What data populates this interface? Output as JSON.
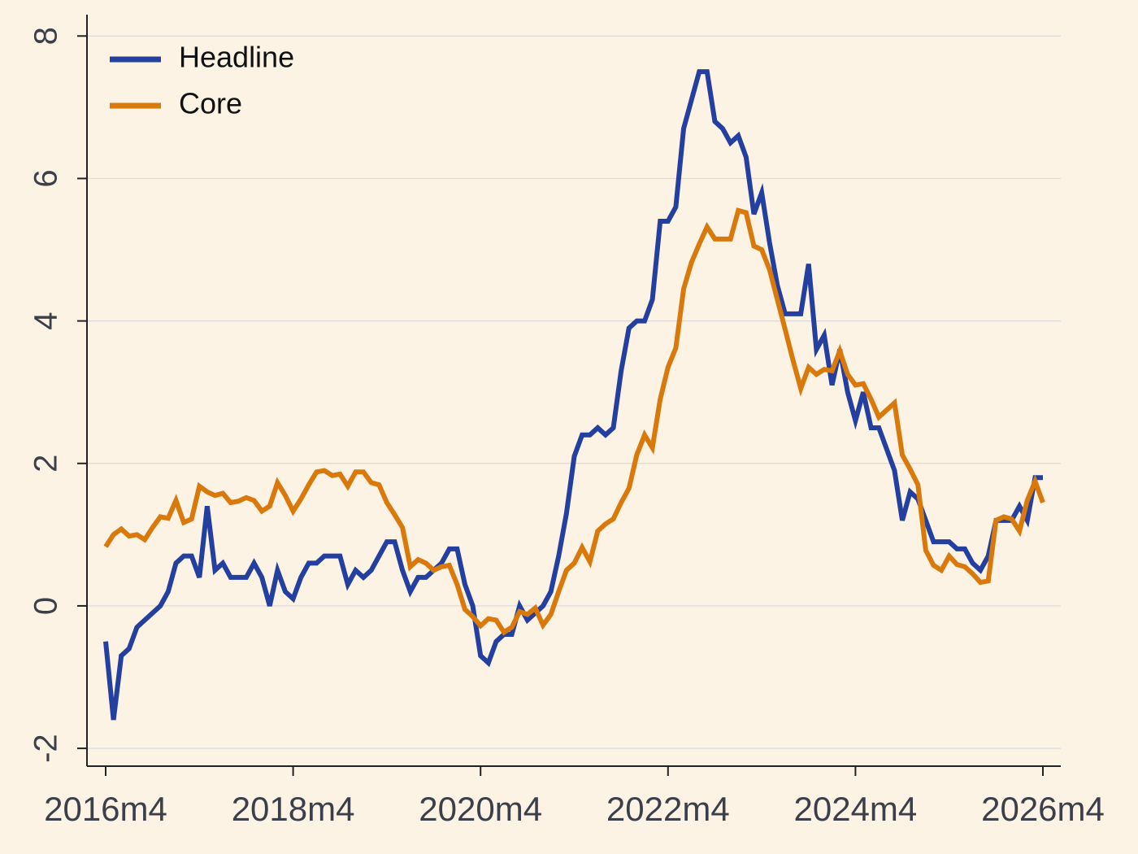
{
  "chart_data": {
    "type": "line",
    "categories": [
      "2016m4",
      null,
      null,
      null,
      null,
      null,
      null,
      null,
      null,
      null,
      null,
      null,
      null,
      null,
      null,
      null,
      null,
      null,
      null,
      null,
      null,
      null,
      null,
      null,
      "2018m4",
      null,
      null,
      null,
      null,
      null,
      null,
      null,
      null,
      null,
      null,
      null,
      null,
      null,
      null,
      null,
      null,
      null,
      null,
      null,
      null,
      null,
      null,
      null,
      "2020m4",
      null,
      null,
      null,
      null,
      null,
      null,
      null,
      null,
      null,
      null,
      null,
      null,
      null,
      null,
      null,
      null,
      null,
      null,
      null,
      null,
      null,
      null,
      null,
      "2022m4",
      null,
      null,
      null,
      null,
      null,
      null,
      null,
      null,
      null,
      null,
      null,
      null,
      null,
      null,
      null,
      null,
      null,
      null,
      null,
      null,
      null,
      null,
      null,
      "2024m4",
      null,
      null,
      null,
      null,
      null,
      null,
      null,
      null,
      null,
      null,
      null,
      null,
      null,
      null,
      null,
      null,
      null,
      null,
      null,
      null,
      null,
      null,
      null,
      "2026m4"
    ],
    "series": [
      {
        "name": "Headline",
        "color": "#2340a0",
        "values": [
          -0.5,
          -1.6,
          -0.7,
          -0.6,
          -0.3,
          -0.2,
          -0.1,
          0.0,
          0.2,
          0.6,
          0.7,
          0.7,
          0.4,
          1.4,
          0.5,
          0.6,
          0.4,
          0.4,
          0.4,
          0.6,
          0.4,
          0.0,
          0.5,
          0.2,
          0.1,
          0.4,
          0.6,
          0.6,
          0.7,
          0.7,
          0.7,
          0.3,
          0.5,
          0.4,
          0.5,
          0.7,
          0.9,
          0.9,
          0.5,
          0.2,
          0.4,
          0.4,
          0.5,
          0.6,
          0.8,
          0.8,
          0.3,
          0.0,
          -0.7,
          -0.8,
          -0.5,
          -0.4,
          -0.4,
          0.0,
          -0.2,
          -0.1,
          0.0,
          0.2,
          0.7,
          1.3,
          2.1,
          2.4,
          2.4,
          2.5,
          2.4,
          2.5,
          3.3,
          3.9,
          4.0,
          4.0,
          4.3,
          5.4,
          5.4,
          5.6,
          6.7,
          7.1,
          7.5,
          7.5,
          6.8,
          6.7,
          6.5,
          6.6,
          6.3,
          5.5,
          5.8,
          5.1,
          4.5,
          4.1,
          4.1,
          4.1,
          4.8,
          3.6,
          3.8,
          3.1,
          3.6,
          3.0,
          2.6,
          3.0,
          2.5,
          2.5,
          2.2,
          1.9,
          1.2,
          1.6,
          1.5,
          1.2,
          0.9,
          0.9,
          0.9,
          0.8,
          0.8,
          0.6,
          0.5,
          0.7,
          1.2,
          1.2,
          1.2,
          1.4,
          1.2,
          1.8,
          1.8
        ]
      },
      {
        "name": "Core",
        "color": "#d9790c",
        "values": [
          0.83,
          1.0,
          1.08,
          0.98,
          1.0,
          0.93,
          1.1,
          1.25,
          1.23,
          1.48,
          1.17,
          1.22,
          1.68,
          1.6,
          1.55,
          1.58,
          1.45,
          1.47,
          1.52,
          1.48,
          1.33,
          1.4,
          1.73,
          1.55,
          1.33,
          1.5,
          1.7,
          1.88,
          1.9,
          1.83,
          1.85,
          1.68,
          1.88,
          1.88,
          1.73,
          1.7,
          1.45,
          1.28,
          1.1,
          0.55,
          0.65,
          0.6,
          0.5,
          0.55,
          0.57,
          0.3,
          -0.05,
          -0.15,
          -0.28,
          -0.18,
          -0.2,
          -0.37,
          -0.3,
          -0.08,
          -0.12,
          -0.03,
          -0.27,
          -0.12,
          0.2,
          0.5,
          0.6,
          0.82,
          0.62,
          1.05,
          1.15,
          1.22,
          1.45,
          1.65,
          2.12,
          2.4,
          2.22,
          2.9,
          3.35,
          3.62,
          4.45,
          4.82,
          5.08,
          5.32,
          5.15,
          5.15,
          5.15,
          5.55,
          5.52,
          5.05,
          5.0,
          4.72,
          4.3,
          3.88,
          3.45,
          3.05,
          3.35,
          3.25,
          3.32,
          3.3,
          3.58,
          3.25,
          3.1,
          3.12,
          2.9,
          2.65,
          2.75,
          2.85,
          2.12,
          1.92,
          1.7,
          0.78,
          0.57,
          0.5,
          0.7,
          0.58,
          0.55,
          0.45,
          0.33,
          0.35,
          1.2,
          1.25,
          1.22,
          1.05,
          1.48,
          1.75,
          1.45
        ]
      }
    ],
    "ylim": [
      -2.25,
      8.3
    ],
    "yticks": [
      -2,
      0,
      2,
      4,
      6,
      8
    ],
    "grid": true,
    "legend": "top-left"
  }
}
